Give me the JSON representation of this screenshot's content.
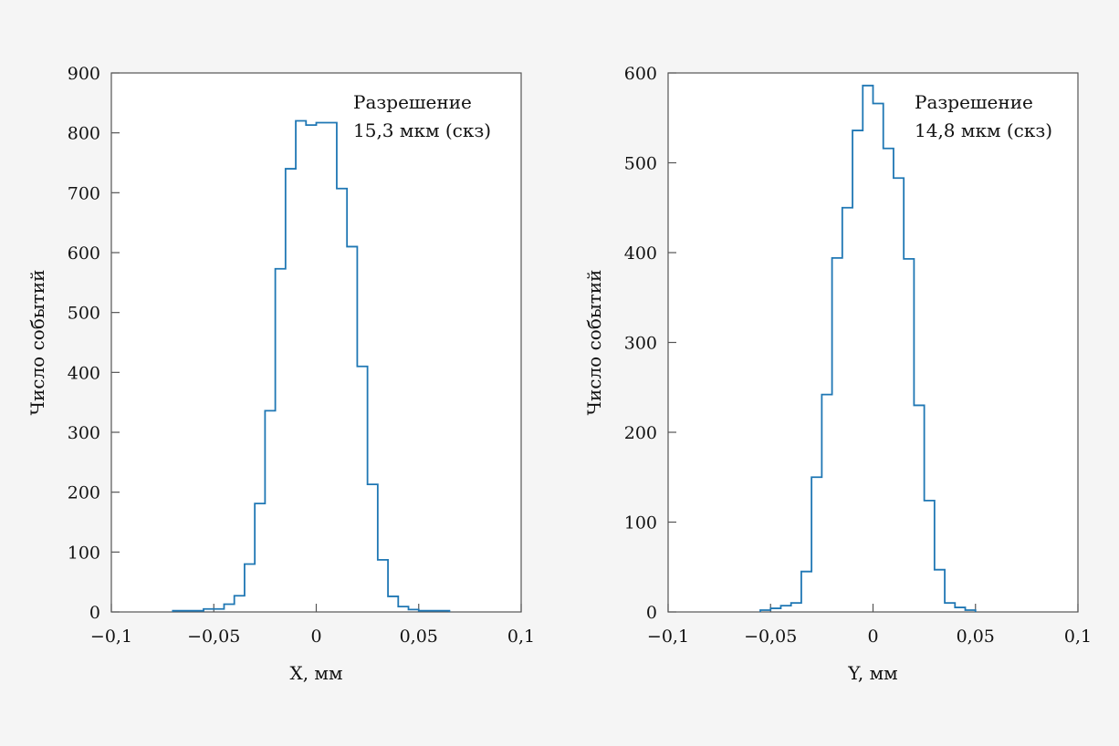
{
  "colors": {
    "histogram": "#1f77b4",
    "axis": "#555555",
    "background": "#f5f5f5"
  },
  "chart_data": [
    {
      "type": "bar",
      "style": "step-histogram",
      "xlabel": "X, мм",
      "ylabel": "Число событий",
      "xlim": [
        -0.1,
        0.1
      ],
      "ylim": [
        0,
        900
      ],
      "xticks": [
        -0.1,
        -0.05,
        0,
        0.05,
        0.1
      ],
      "xtick_labels": [
        "−0,1",
        "−0,05",
        "0",
        "0,05",
        "0,1"
      ],
      "yticks": [
        0,
        100,
        200,
        300,
        400,
        500,
        600,
        700,
        800,
        900
      ],
      "ytick_labels": [
        "0",
        "100",
        "200",
        "300",
        "400",
        "500",
        "600",
        "700",
        "800",
        "900"
      ],
      "annotation": [
        "Разрешение",
        "15,3 мкм (скз)"
      ],
      "annotation_placement": "top-right",
      "grid": false,
      "bins": [
        {
          "x0": -0.07,
          "x1": -0.055,
          "count": 2
        },
        {
          "x0": -0.055,
          "x1": -0.045,
          "count": 5
        },
        {
          "x0": -0.045,
          "x1": -0.04,
          "count": 13
        },
        {
          "x0": -0.04,
          "x1": -0.035,
          "count": 27
        },
        {
          "x0": -0.035,
          "x1": -0.03,
          "count": 80
        },
        {
          "x0": -0.03,
          "x1": -0.025,
          "count": 181
        },
        {
          "x0": -0.025,
          "x1": -0.02,
          "count": 336
        },
        {
          "x0": -0.02,
          "x1": -0.015,
          "count": 573
        },
        {
          "x0": -0.015,
          "x1": -0.01,
          "count": 740
        },
        {
          "x0": -0.01,
          "x1": -0.005,
          "count": 820
        },
        {
          "x0": -0.005,
          "x1": 0.0,
          "count": 813
        },
        {
          "x0": 0.0,
          "x1": 0.01,
          "count": 817
        },
        {
          "x0": 0.01,
          "x1": 0.015,
          "count": 707
        },
        {
          "x0": 0.015,
          "x1": 0.02,
          "count": 610
        },
        {
          "x0": 0.02,
          "x1": 0.025,
          "count": 410
        },
        {
          "x0": 0.025,
          "x1": 0.03,
          "count": 213
        },
        {
          "x0": 0.03,
          "x1": 0.035,
          "count": 87
        },
        {
          "x0": 0.035,
          "x1": 0.04,
          "count": 26
        },
        {
          "x0": 0.04,
          "x1": 0.045,
          "count": 9
        },
        {
          "x0": 0.045,
          "x1": 0.05,
          "count": 4
        },
        {
          "x0": 0.05,
          "x1": 0.065,
          "count": 2
        }
      ]
    },
    {
      "type": "bar",
      "style": "step-histogram",
      "xlabel": "Y, мм",
      "ylabel": "Число событий",
      "xlim": [
        -0.1,
        0.1
      ],
      "ylim": [
        0,
        600
      ],
      "xticks": [
        -0.1,
        -0.05,
        0,
        0.05,
        0.1
      ],
      "xtick_labels": [
        "−0,1",
        "−0,05",
        "0",
        "0,05",
        "0,1"
      ],
      "yticks": [
        0,
        100,
        200,
        300,
        400,
        500,
        600
      ],
      "ytick_labels": [
        "0",
        "100",
        "200",
        "300",
        "400",
        "500",
        "600"
      ],
      "annotation": [
        "Разрешение",
        "14,8 мкм (скз)"
      ],
      "annotation_placement": "top-right",
      "grid": false,
      "bins": [
        {
          "x0": -0.055,
          "x1": -0.05,
          "count": 2
        },
        {
          "x0": -0.05,
          "x1": -0.045,
          "count": 4
        },
        {
          "x0": -0.045,
          "x1": -0.04,
          "count": 7
        },
        {
          "x0": -0.04,
          "x1": -0.035,
          "count": 10
        },
        {
          "x0": -0.035,
          "x1": -0.03,
          "count": 45
        },
        {
          "x0": -0.03,
          "x1": -0.025,
          "count": 150
        },
        {
          "x0": -0.025,
          "x1": -0.02,
          "count": 242
        },
        {
          "x0": -0.02,
          "x1": -0.015,
          "count": 394
        },
        {
          "x0": -0.015,
          "x1": -0.01,
          "count": 450
        },
        {
          "x0": -0.01,
          "x1": -0.005,
          "count": 536
        },
        {
          "x0": -0.005,
          "x1": 0.0,
          "count": 586
        },
        {
          "x0": 0.0,
          "x1": 0.005,
          "count": 566
        },
        {
          "x0": 0.005,
          "x1": 0.01,
          "count": 516
        },
        {
          "x0": 0.01,
          "x1": 0.015,
          "count": 483
        },
        {
          "x0": 0.015,
          "x1": 0.02,
          "count": 393
        },
        {
          "x0": 0.02,
          "x1": 0.025,
          "count": 230
        },
        {
          "x0": 0.025,
          "x1": 0.03,
          "count": 124
        },
        {
          "x0": 0.03,
          "x1": 0.035,
          "count": 47
        },
        {
          "x0": 0.035,
          "x1": 0.04,
          "count": 10
        },
        {
          "x0": 0.04,
          "x1": 0.045,
          "count": 5
        },
        {
          "x0": 0.045,
          "x1": 0.05,
          "count": 2
        }
      ]
    }
  ]
}
